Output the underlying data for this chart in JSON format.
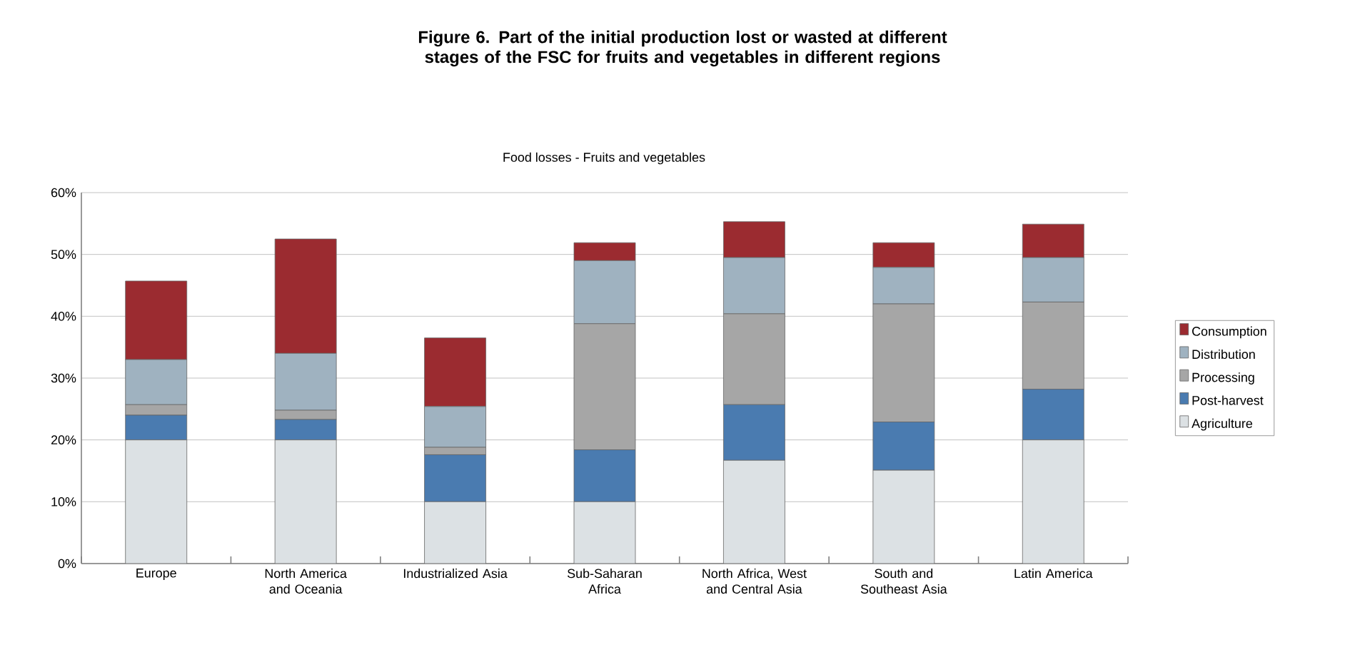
{
  "chart_data": {
    "type": "bar",
    "stacked": true,
    "title": "Figure 6.  Part of the initial production lost or wasted at different stages of the FSC for fruits and vegetables in different regions",
    "subtitle": "Food losses - Fruits and vegetables",
    "categories": [
      "Europe",
      "North America and Oceania",
      "Industrialized Asia",
      "Sub-Saharan Africa",
      "North Africa, West and Central Asia",
      "South and Southeast Asia",
      "Latin America"
    ],
    "series": [
      {
        "name": "Agriculture",
        "color": "#dce1e4",
        "values": [
          20,
          20,
          10,
          10,
          16.7,
          15.1,
          20
        ]
      },
      {
        "name": "Post-harvest",
        "color": "#4a7bb0",
        "values": [
          4,
          3.3,
          7.6,
          8.4,
          9,
          7.8,
          8.2
        ]
      },
      {
        "name": "Processing",
        "color": "#a6a6a6",
        "values": [
          1.7,
          1.5,
          1.2,
          20.4,
          14.7,
          19.1,
          14.1
        ]
      },
      {
        "name": "Distribution",
        "color": "#9fb2c0",
        "values": [
          7.3,
          9.2,
          6.6,
          10.2,
          9.1,
          5.9,
          7.2
        ]
      },
      {
        "name": "Consumption",
        "color": "#9b2b30",
        "values": [
          12.7,
          18.5,
          11.1,
          2.9,
          5.8,
          4.0,
          5.4
        ]
      }
    ],
    "ylim": [
      0,
      60
    ],
    "yticks": [
      {
        "value": 0,
        "label": "0%"
      },
      {
        "value": 10,
        "label": "10%"
      },
      {
        "value": 20,
        "label": "20%"
      },
      {
        "value": 30,
        "label": "30%"
      },
      {
        "value": 40,
        "label": "40%"
      },
      {
        "value": 50,
        "label": "50%"
      },
      {
        "value": 60,
        "label": "60%"
      }
    ],
    "grid": "y",
    "legend": "right"
  }
}
